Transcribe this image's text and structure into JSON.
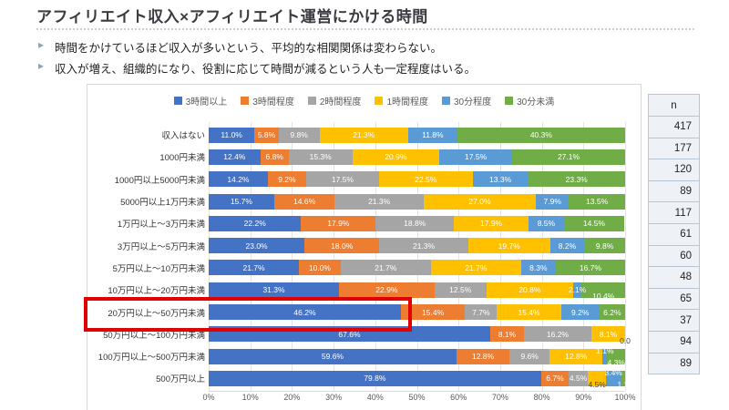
{
  "title": "アフィリエイト収入×アフィリエイト運営にかける時間",
  "bullets": [
    "時間をかけているほど収入が多いという、平均的な相関関係は変わらない。",
    "収入が増え、組織的になり、役割に応じて時間が減るという人も一定程度はいる。"
  ],
  "chart_data": {
    "type": "bar",
    "stacked": true,
    "orientation": "horizontal",
    "grid": true,
    "legend_position": "top",
    "xlim": [
      0,
      100
    ],
    "x_ticks": [
      "0%",
      "10%",
      "20%",
      "30%",
      "40%",
      "50%",
      "60%",
      "70%",
      "80%",
      "90%",
      "100%"
    ],
    "legend": [
      "3時間以上",
      "3時間程度",
      "2時間程度",
      "1時間程度",
      "30分程度",
      "30分未満"
    ],
    "series_colors": [
      "#4472c4",
      "#ed7d31",
      "#a5a5a5",
      "#ffc000",
      "#5b9bd5",
      "#70ad47"
    ],
    "categories": [
      "収入はない",
      "1000円未満",
      "1000円以上5000円未満",
      "5000円以上1万円未満",
      "1万円以上～3万円未満",
      "3万円以上～5万円未満",
      "5万円以上～10万円未満",
      "10万円以上～20万円未満",
      "20万円以上～50万円未満",
      "50万円以上～100万円未満",
      "100万円以上～500万円未満",
      "500万円以上"
    ],
    "series": [
      {
        "name": "3時間以上",
        "values": [
          11.0,
          12.4,
          14.2,
          15.7,
          22.2,
          23.0,
          21.7,
          31.3,
          46.2,
          67.6,
          59.6,
          79.8
        ]
      },
      {
        "name": "3時間程度",
        "values": [
          5.8,
          6.8,
          9.2,
          14.6,
          17.9,
          18.0,
          10.0,
          22.9,
          15.4,
          8.1,
          12.8,
          6.7
        ]
      },
      {
        "name": "2時間程度",
        "values": [
          9.8,
          15.3,
          17.5,
          21.3,
          18.8,
          21.3,
          21.7,
          12.5,
          7.7,
          16.2,
          9.6,
          4.5
        ]
      },
      {
        "name": "1時間程度",
        "values": [
          21.3,
          20.9,
          22.5,
          27.0,
          17.9,
          19.7,
          21.7,
          20.8,
          15.4,
          8.1,
          12.8,
          4.5
        ]
      },
      {
        "name": "30分程度",
        "values": [
          11.8,
          17.5,
          13.3,
          7.9,
          8.5,
          8.2,
          8.3,
          2.1,
          9.2,
          0.0,
          1.1,
          3.4
        ]
      },
      {
        "name": "30分未満",
        "values": [
          40.3,
          27.1,
          23.3,
          13.5,
          14.5,
          9.8,
          16.7,
          10.4,
          6.2,
          0.0,
          4.3,
          1.1
        ]
      }
    ],
    "highlight": {
      "category": "20万円以上～50万円未満",
      "row_index": 8,
      "color": "#e00000"
    },
    "label_overrides": {
      "7_5": {
        "dy": 1
      },
      "9_4": {
        "dim": true,
        "dy": 1,
        "text": "0.0"
      },
      "9_5": {
        "hide": true
      },
      "10_4": {
        "dy": -1
      },
      "10_5": {
        "dy": 1
      },
      "11_3": {
        "dim": true,
        "dy": 1
      },
      "11_4": {
        "dy": -1
      },
      "11_5": {
        "dy": 1,
        "text": "1.1"
      }
    }
  },
  "n_table": {
    "header": "n",
    "values": [
      417,
      177,
      120,
      89,
      117,
      61,
      60,
      48,
      65,
      37,
      94,
      89
    ]
  }
}
